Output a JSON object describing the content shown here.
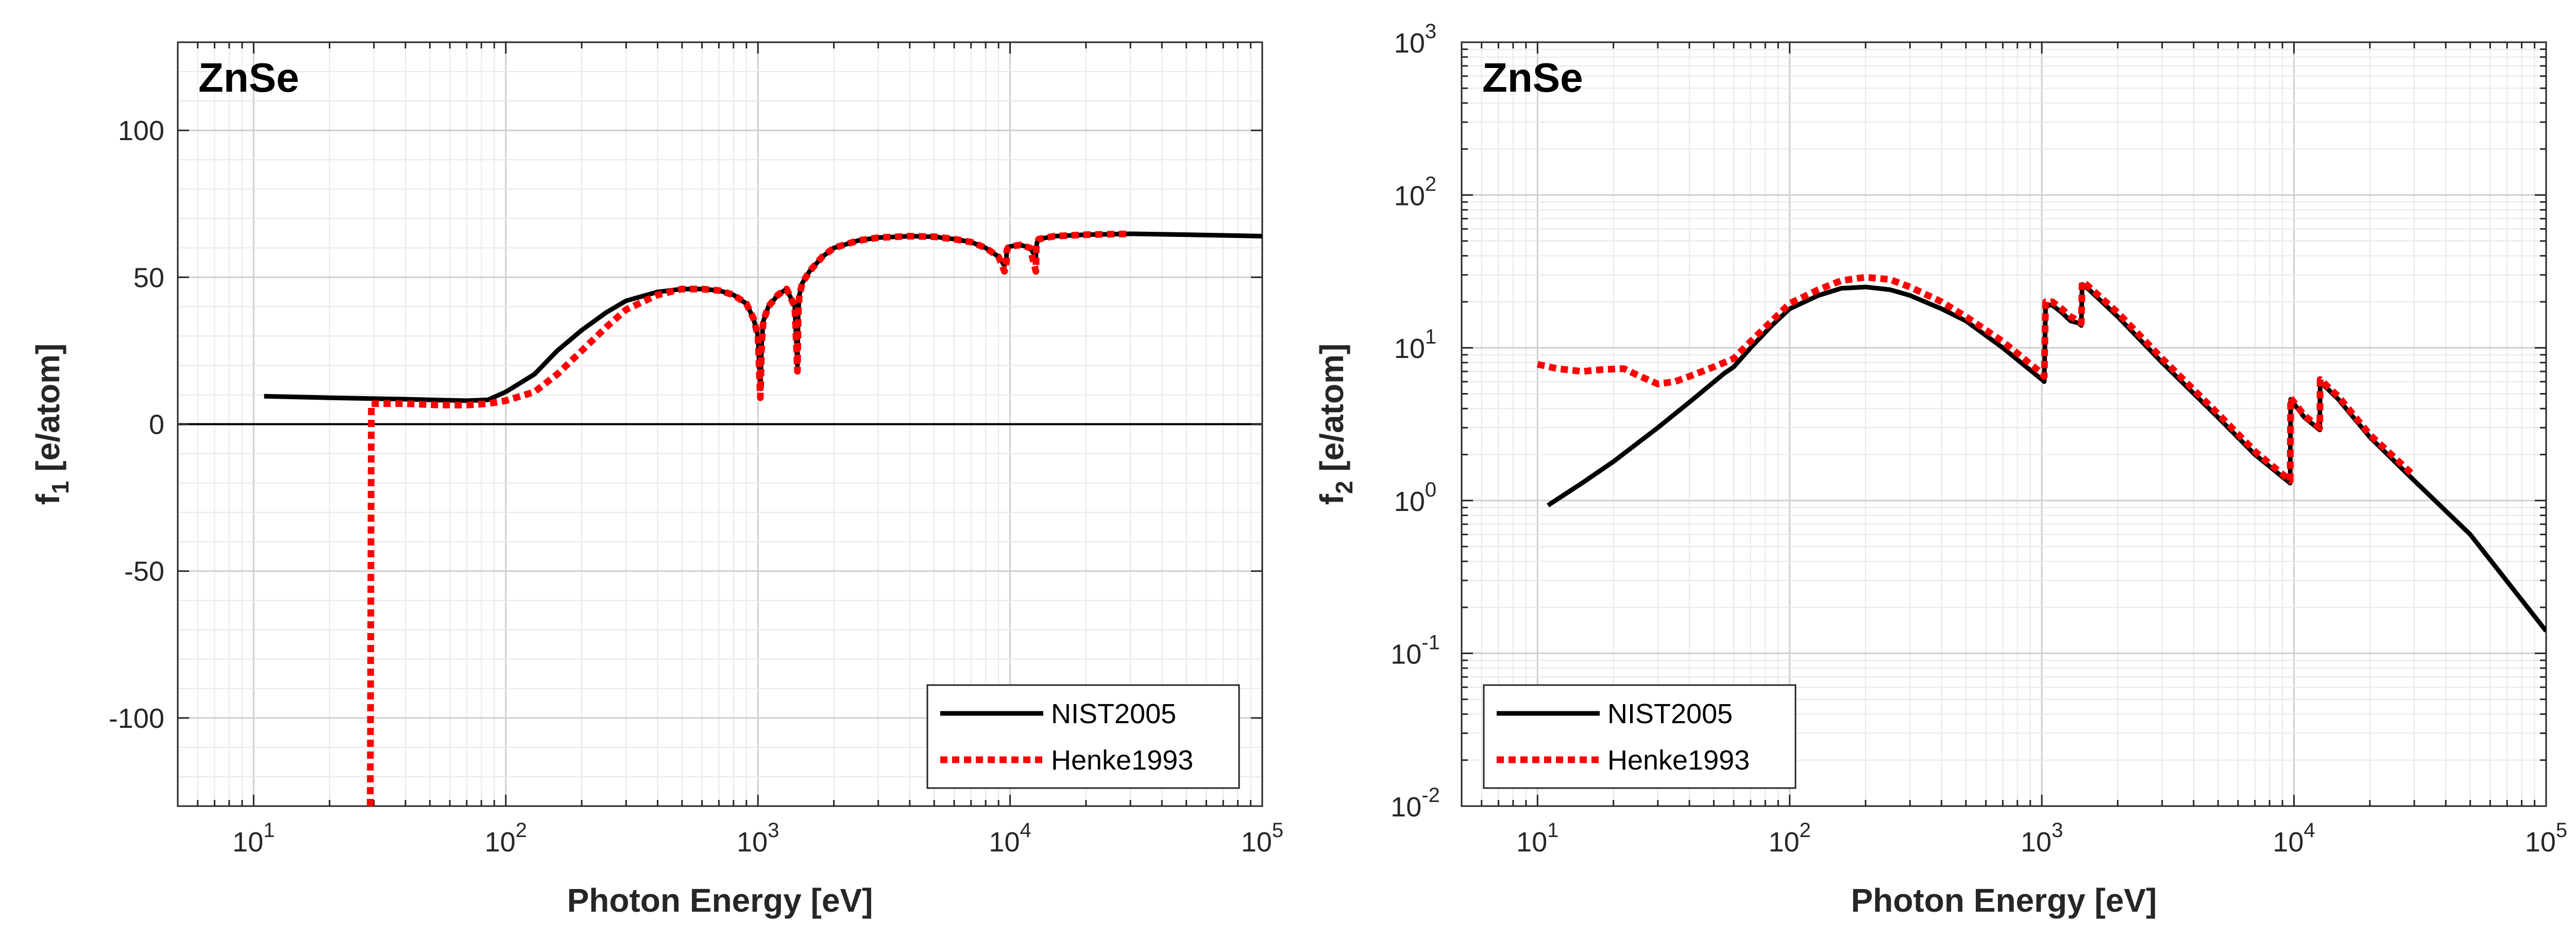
{
  "chart_data": [
    {
      "type": "line",
      "title": "ZnSe",
      "xlabel": "Photon Energy [eV]",
      "ylabel": "f",
      "ylabel_sub": "1",
      "ylabel_unit": "[e/atom]",
      "xscale": "log",
      "yscale": "linear",
      "xlim": [
        5,
        100000
      ],
      "ylim": [
        -130,
        130
      ],
      "xtick_exponents": [
        "1",
        "2",
        "3",
        "4",
        "5"
      ],
      "yticks": [
        -100,
        -50,
        0,
        50,
        100
      ],
      "ytick_labels": [
        "-100",
        "-50",
        "0",
        "50",
        "100"
      ],
      "grid": true,
      "legend_position": "bottom-right",
      "series": [
        {
          "name": "NIST2005",
          "color": "#000000",
          "style": "solid",
          "x": [
            11,
            20,
            30,
            40,
            55,
            70,
            85,
            100,
            130,
            160,
            200,
            250,
            300,
            400,
            500,
            600,
            700,
            800,
            900,
            960,
            1000,
            1022,
            1035,
            1050,
            1100,
            1200,
            1300,
            1400,
            1434,
            1445,
            1460,
            1500,
            1600,
            1800,
            2000,
            2500,
            3000,
            4000,
            5000,
            6000,
            7000,
            8000,
            9000,
            9500,
            9659,
            9700,
            9800,
            10000,
            11000,
            12000,
            12658,
            12700,
            12800,
            13000,
            15000,
            20000,
            30000,
            50000,
            100000
          ],
          "y": [
            9.5,
            9.0,
            8.7,
            8.5,
            8.2,
            8.0,
            8.3,
            11,
            17,
            25,
            32,
            38,
            42,
            45,
            46,
            46,
            45.5,
            44,
            41,
            36,
            30,
            12,
            28,
            35,
            40,
            44,
            46,
            40,
            20,
            38,
            44,
            48,
            52,
            57,
            60,
            62.5,
            63.5,
            64,
            63.8,
            63,
            62,
            60,
            57,
            54,
            56,
            59,
            60,
            60.5,
            61,
            60,
            57,
            60,
            62,
            63,
            64,
            64.5,
            64.8,
            64.5,
            64
          ]
        },
        {
          "name": "Henke1993",
          "color": "#ff0000",
          "style": "dotted",
          "x": [
            29,
            29.3,
            30,
            40,
            55,
            70,
            85,
            100,
            130,
            160,
            200,
            250,
            300,
            400,
            500,
            600,
            700,
            800,
            900,
            960,
            1000,
            1022,
            1035,
            1050,
            1100,
            1200,
            1300,
            1400,
            1434,
            1445,
            1460,
            1500,
            1600,
            1800,
            2000,
            2500,
            3000,
            4000,
            5000,
            6000,
            7000,
            8000,
            9000,
            9500,
            9659,
            9700,
            9800,
            10000,
            11000,
            12000,
            12658,
            12700,
            12800,
            13000,
            15000,
            20000,
            30000
          ],
          "y": [
            -130,
            7,
            7,
            7,
            6.5,
            6.5,
            7,
            8,
            11,
            17,
            25,
            33,
            39,
            44,
            46,
            46,
            45.5,
            44,
            41,
            36,
            30,
            9,
            28,
            35,
            40,
            44,
            46,
            40,
            18,
            38,
            44,
            48,
            52,
            57,
            60,
            62.5,
            63.5,
            64,
            63.8,
            63,
            62,
            60,
            57,
            52,
            55,
            59,
            60,
            60.5,
            61,
            60,
            52,
            60,
            62,
            63,
            64,
            64.5,
            64.8
          ]
        }
      ]
    },
    {
      "type": "line",
      "title": "ZnSe",
      "xlabel": "Photon Energy [eV]",
      "ylabel": "f",
      "ylabel_sub": "2",
      "ylabel_unit": "[e/atom]",
      "xscale": "log",
      "yscale": "log",
      "xlim": [
        5,
        100000
      ],
      "ylim": [
        0.01,
        1000
      ],
      "xtick_exponents": [
        "1",
        "2",
        "3",
        "4",
        "5"
      ],
      "ytick_exponents": [
        "-2",
        "-1",
        "0",
        "1",
        "2",
        "3"
      ],
      "grid": true,
      "legend_position": "bottom-left",
      "series": [
        {
          "name": "NIST2005",
          "color": "#000000",
          "style": "solid",
          "x": [
            11,
            15,
            20,
            30,
            40,
            55,
            60,
            70,
            85,
            100,
            130,
            160,
            200,
            250,
            300,
            400,
            500,
            700,
            1000,
            1022,
            1035,
            1100,
            1200,
            1300,
            1400,
            1434,
            1445,
            1500,
            2000,
            3000,
            5000,
            7000,
            9659,
            9700,
            11000,
            12658,
            12700,
            15000,
            20000,
            30000,
            50000,
            100000
          ],
          "y": [
            0.93,
            1.3,
            1.8,
            3.0,
            4.4,
            6.8,
            7.5,
            10,
            14,
            18,
            22,
            24.5,
            25,
            24,
            22,
            18,
            15,
            10,
            6.2,
            6.0,
            19,
            19,
            17,
            15,
            14.5,
            14,
            26,
            25,
            16,
            8.0,
            3.5,
            2.0,
            1.3,
            4.6,
            3.5,
            2.9,
            6.0,
            4.6,
            2.6,
            1.35,
            0.6,
            0.14
          ]
        },
        {
          "name": "Henke1993",
          "color": "#ff0000",
          "style": "dotted",
          "x": [
            10,
            12,
            15,
            18,
            22,
            25,
            30,
            35,
            40,
            50,
            60,
            70,
            85,
            100,
            130,
            160,
            200,
            250,
            300,
            400,
            500,
            700,
            1000,
            1022,
            1035,
            1100,
            1200,
            1300,
            1400,
            1434,
            1445,
            1500,
            2000,
            3000,
            5000,
            7000,
            9659,
            9700,
            11000,
            12658,
            12700,
            15000,
            20000,
            30000
          ],
          "y": [
            7.8,
            7.3,
            7.0,
            7.2,
            7.3,
            6.6,
            5.8,
            6.0,
            6.5,
            7.5,
            8.5,
            11,
            15,
            19.5,
            24,
            27.5,
            29,
            28,
            25,
            20,
            16,
            11,
            6.8,
            6.5,
            20,
            20,
            18,
            16,
            15,
            14.5,
            27,
            26,
            17,
            8.5,
            3.7,
            2.1,
            1.35,
            4.7,
            3.6,
            3.0,
            6.2,
            4.8,
            2.7,
            1.45
          ]
        }
      ]
    }
  ]
}
